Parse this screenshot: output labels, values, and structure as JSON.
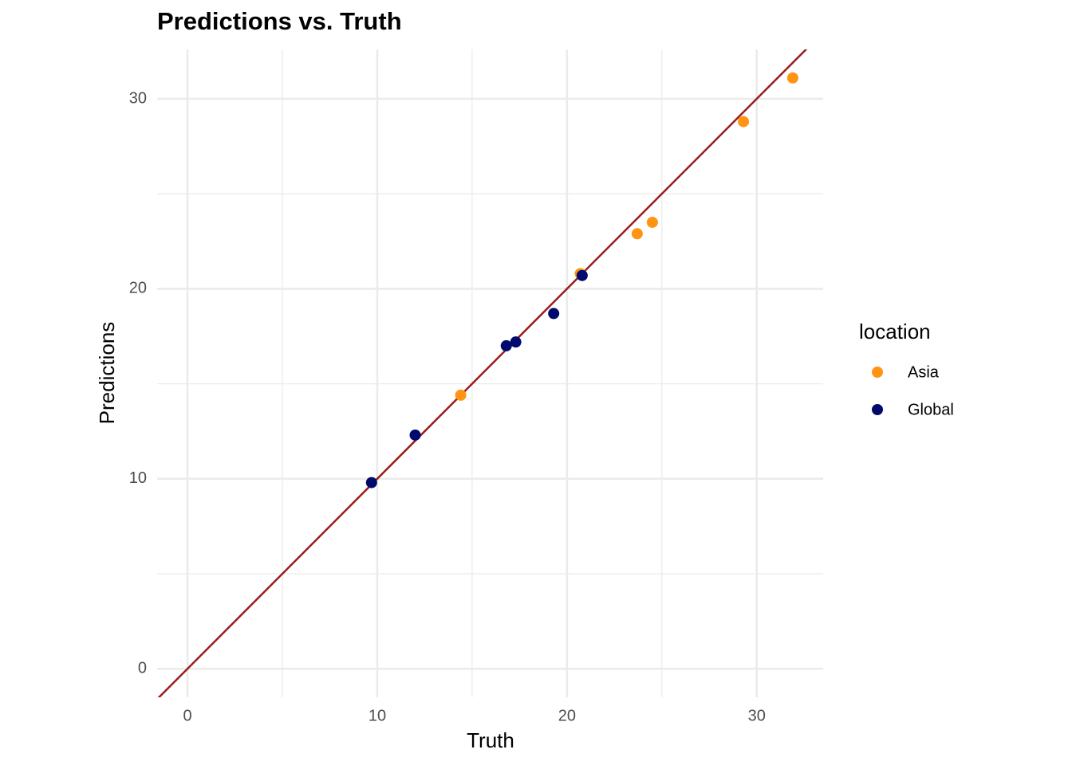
{
  "chart_data": {
    "type": "scatter",
    "title": "Predictions vs. Truth",
    "x_label": "Truth",
    "y_label": "Predictions",
    "legend_title": "location",
    "legend_position": "right",
    "series": [
      {
        "name": "Asia",
        "color": "#ff9412",
        "x": [
          14.4,
          20.7,
          23.7,
          24.5,
          29.3,
          31.9
        ],
        "y": [
          14.4,
          20.8,
          22.9,
          23.5,
          28.8,
          31.1
        ]
      },
      {
        "name": "Global",
        "color": "#000a6e",
        "x": [
          9.7,
          12.0,
          16.8,
          17.3,
          19.3,
          20.8
        ],
        "y": [
          9.8,
          12.3,
          17.0,
          17.2,
          18.7,
          20.7
        ]
      }
    ],
    "reference_line": {
      "slope": 1,
      "intercept": 0,
      "color": "#9b1c1c"
    },
    "xlim": [
      -1.6,
      33.5
    ],
    "ylim": [
      -1.5,
      32.6
    ],
    "xticks": [
      0,
      10,
      20,
      30
    ],
    "yticks": [
      0,
      10,
      20,
      30
    ],
    "xminor": [
      5,
      15,
      25
    ],
    "yminor": [
      5,
      15,
      25
    ],
    "grid": true
  }
}
